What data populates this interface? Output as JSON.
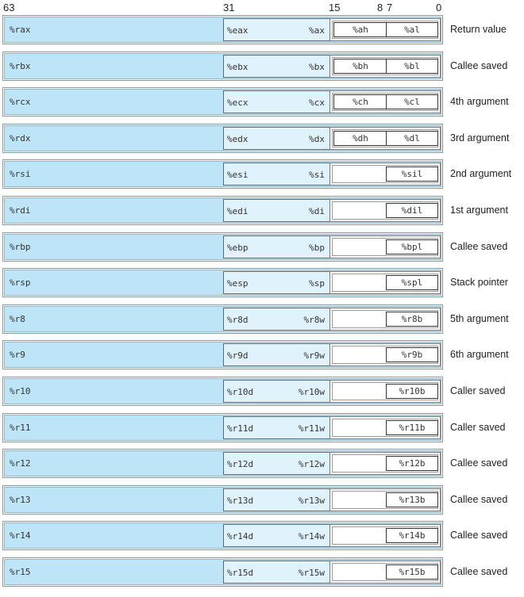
{
  "bit_labels": [
    "63",
    "31",
    "15",
    "8",
    "7",
    "0"
  ],
  "colors": {
    "r64_fill": "#bde4f7",
    "r32_fill": "#e0f2fc",
    "r16_fill": "#ffffff"
  },
  "registers": [
    {
      "r64": "%rax",
      "r32": "%eax",
      "r16": "%ax",
      "hi": "%ah",
      "lo": "%al",
      "use": "Return value"
    },
    {
      "r64": "%rbx",
      "r32": "%ebx",
      "r16": "%bx",
      "hi": "%bh",
      "lo": "%bl",
      "use": "Callee saved"
    },
    {
      "r64": "%rcx",
      "r32": "%ecx",
      "r16": "%cx",
      "hi": "%ch",
      "lo": "%cl",
      "use": "4th argument"
    },
    {
      "r64": "%rdx",
      "r32": "%edx",
      "r16": "%dx",
      "hi": "%dh",
      "lo": "%dl",
      "use": "3rd argument"
    },
    {
      "r64": "%rsi",
      "r32": "%esi",
      "r16": "%si",
      "lo": "%sil",
      "use": "2nd argument"
    },
    {
      "r64": "%rdi",
      "r32": "%edi",
      "r16": "%di",
      "lo": "%dil",
      "use": "1st argument"
    },
    {
      "r64": "%rbp",
      "r32": "%ebp",
      "r16": "%bp",
      "lo": "%bpl",
      "use": "Callee saved"
    },
    {
      "r64": "%rsp",
      "r32": "%esp",
      "r16": "%sp",
      "lo": "%spl",
      "use": "Stack pointer"
    },
    {
      "r64": "%r8",
      "r32": "%r8d",
      "r16": "%r8w",
      "lo": "%r8b",
      "use": "5th argument"
    },
    {
      "r64": "%r9",
      "r32": "%r9d",
      "r16": "%r9w",
      "lo": "%r9b",
      "use": "6th argument"
    },
    {
      "r64": "%r10",
      "r32": "%r10d",
      "r16": "%r10w",
      "lo": "%r10b",
      "use": "Caller saved"
    },
    {
      "r64": "%r11",
      "r32": "%r11d",
      "r16": "%r11w",
      "lo": "%r11b",
      "use": "Caller saved"
    },
    {
      "r64": "%r12",
      "r32": "%r12d",
      "r16": "%r12w",
      "lo": "%r12b",
      "use": "Callee saved"
    },
    {
      "r64": "%r13",
      "r32": "%r13d",
      "r16": "%r13w",
      "lo": "%r13b",
      "use": "Callee saved"
    },
    {
      "r64": "%r14",
      "r32": "%r14d",
      "r16": "%r14w",
      "lo": "%r14b",
      "use": "Callee saved"
    },
    {
      "r64": "%r15",
      "r32": "%r15d",
      "r16": "%r15w",
      "lo": "%r15b",
      "use": "Callee saved"
    }
  ]
}
